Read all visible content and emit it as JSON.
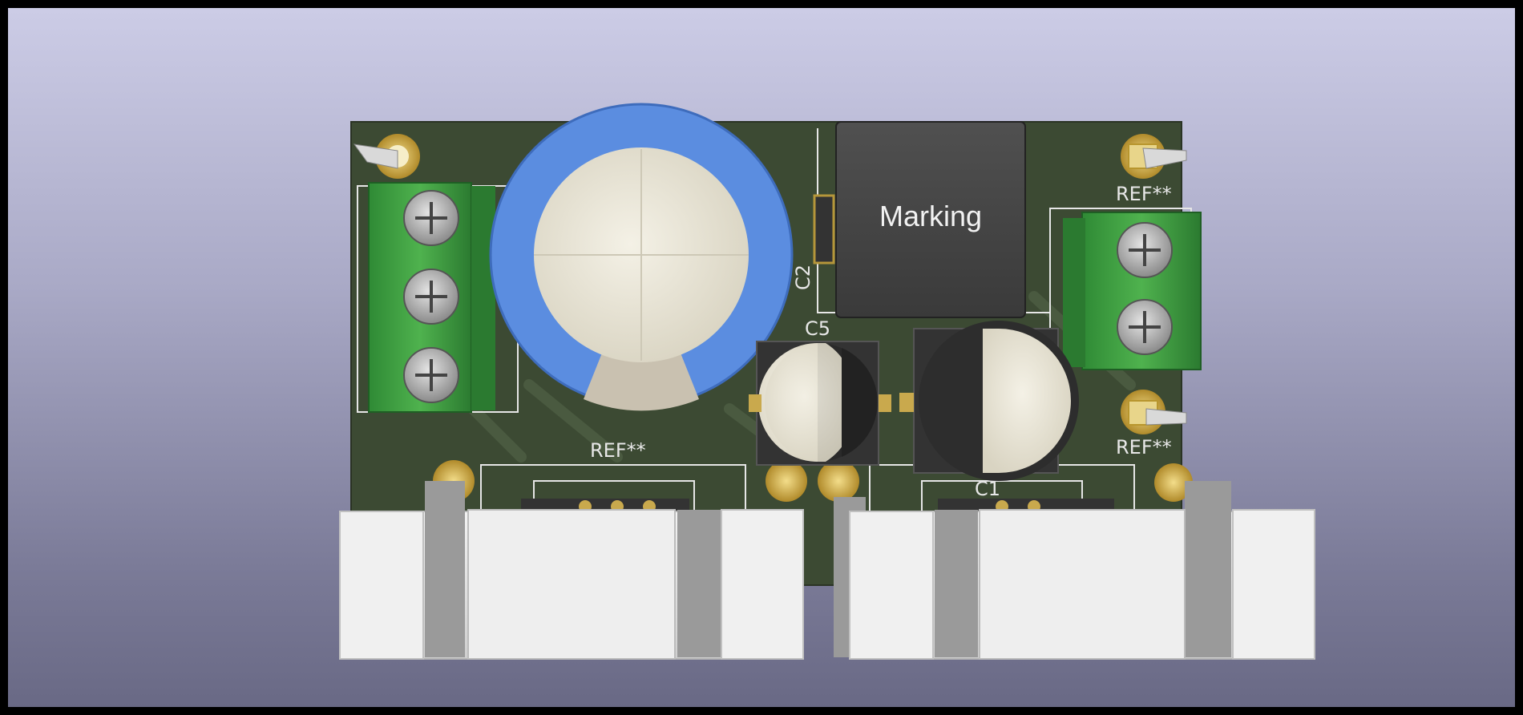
{
  "viewer": {
    "background_top": "#cccce6",
    "background_bottom": "#696985",
    "board_color": "#3c4a33"
  },
  "board": {
    "labels": {
      "ref_top_right": "REF**",
      "ref_bottom_right": "REF**",
      "ref_center_left": "REF**",
      "c2": "C2",
      "c5": "C5",
      "c1": "C1",
      "inductor_marking": "Marking"
    }
  }
}
